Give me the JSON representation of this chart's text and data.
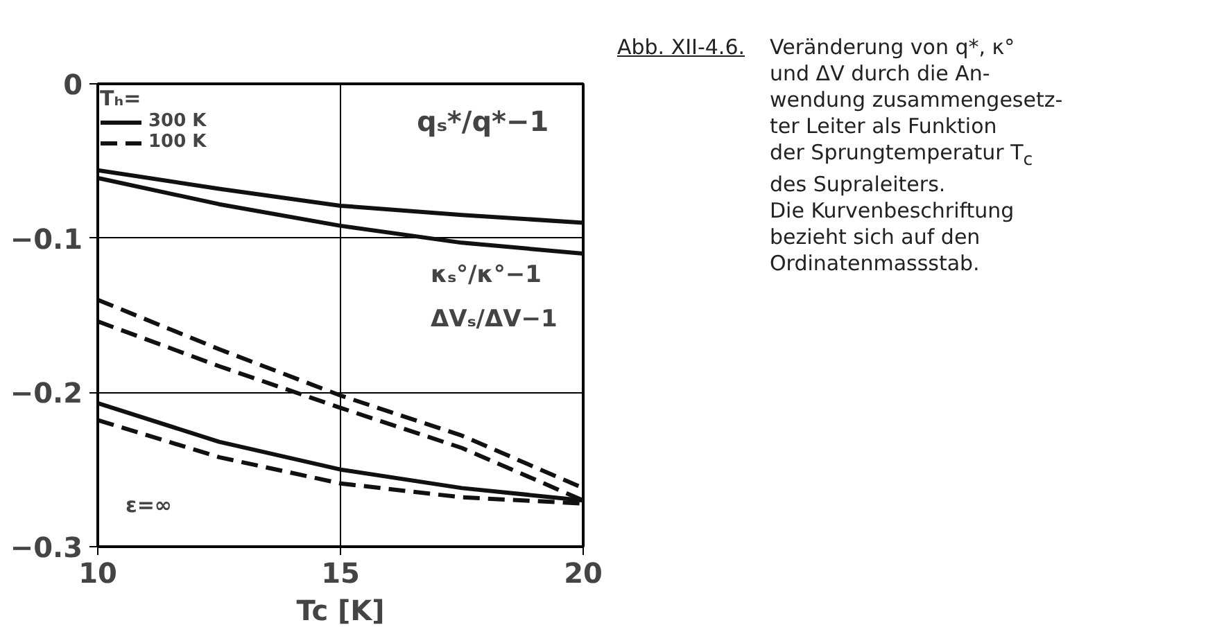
{
  "chart_data": {
    "type": "line",
    "title": "Abb. XII-4.6.",
    "subtitle": "Veränderung von q*, κ°\nund ΔV durch die An-\nwendung zusammengesetz-\nter Leiter als Funktion\nder Sprungtemperatur T$_{c}$\ndes Supraleiters.\nDie Kurvenbeschriftung\nbezieht sich auf den\nOrdinatenmassstab.",
    "xlabel": "Tc [K]",
    "legend_title": "Tₕ=",
    "x": [
      10,
      12.5,
      15,
      17.5,
      20
    ],
    "series": [
      {
        "name": "300 K",
        "color": "#111111",
        "line_style": "solid",
        "values": [
          -0.056,
          -0.068,
          -0.079,
          -0.085,
          -0.09
        ]
      },
      {
        "color": "#111111",
        "line_style": "solid",
        "values": [
          -0.061,
          -0.078,
          -0.092,
          -0.103,
          -0.11
        ]
      },
      {
        "name": "100 K",
        "color": "#111111",
        "line_style": "dashed",
        "values": [
          -0.14,
          -0.172,
          -0.202,
          -0.228,
          -0.262
        ]
      },
      {
        "color": "#111111",
        "line_style": "dashed",
        "values": [
          -0.154,
          -0.183,
          -0.21,
          -0.236,
          -0.27
        ]
      },
      {
        "color": "#111111",
        "line_style": "solid",
        "values": [
          -0.207,
          -0.232,
          -0.25,
          -0.262,
          -0.27
        ]
      },
      {
        "color": "#111111",
        "line_style": "dashed",
        "values": [
          -0.218,
          -0.242,
          -0.259,
          -0.268,
          -0.272
        ]
      }
    ],
    "annotations": [
      "qₛ*/q*−1",
      "κₛ°/κ°−1",
      "ΔVₛ/ΔV−1",
      "ε=∞"
    ],
    "xlim": [
      10,
      20
    ],
    "xticks": [
      10,
      15,
      20
    ],
    "ylim": [
      -0.3,
      0
    ],
    "yticks": [
      0,
      -0.1,
      -0.2,
      -0.3
    ],
    "grid": true,
    "legend": "top left",
    "marker": "none"
  }
}
